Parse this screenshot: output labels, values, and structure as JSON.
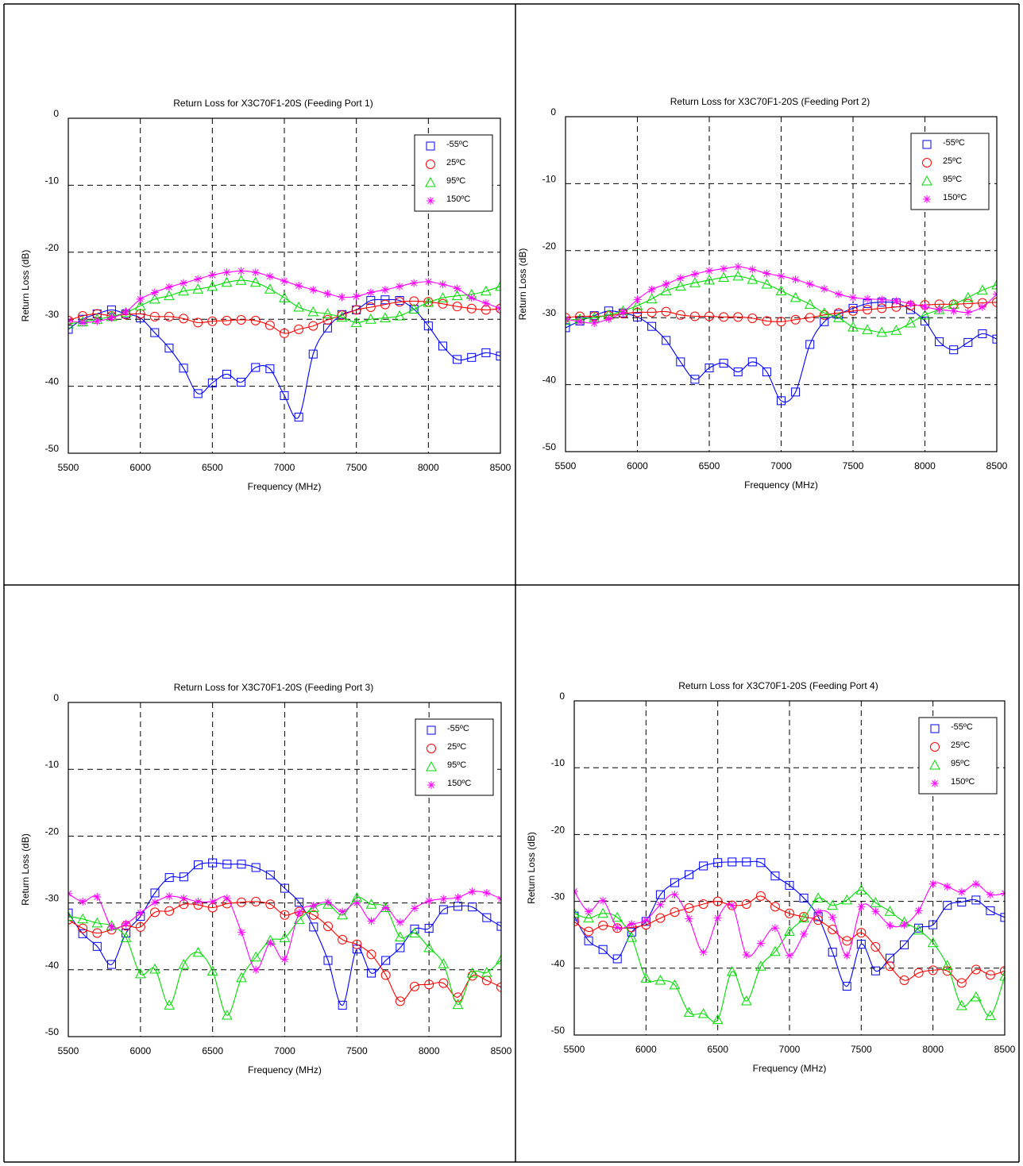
{
  "legend_labels": [
    "-55ºC",
    "25ºC",
    "95ºC",
    "150ºC"
  ],
  "series_colors": [
    "#0000ff",
    "#ff0000",
    "#00dd00",
    "#ff00ff"
  ],
  "marker_icons": [
    "square-marker-icon",
    "circle-marker-icon",
    "triangle-marker-icon",
    "asterisk-marker-icon"
  ],
  "chart_data": [
    {
      "type": "line",
      "title": "Return Loss for X3C70F1-20S (Feeding Port 1)",
      "xlabel": "Frequency (MHz)",
      "ylabel": "Return Loss (dB)",
      "xlim": [
        5500,
        8500
      ],
      "ylim": [
        -50,
        0
      ],
      "xticks": [
        "5500",
        "6000",
        "6500",
        "7000",
        "7500",
        "8000",
        "8500"
      ],
      "yticks": [
        "0",
        "-10",
        "-20",
        "-30",
        "-40",
        "-50"
      ],
      "grid": true,
      "legend": "top-right",
      "x": [
        5500,
        5600,
        5700,
        5800,
        5900,
        6000,
        6100,
        6200,
        6300,
        6400,
        6500,
        6600,
        6700,
        6800,
        6900,
        7000,
        7100,
        7200,
        7300,
        7400,
        7500,
        7600,
        7700,
        7800,
        7900,
        8000,
        8100,
        8200,
        8300,
        8400,
        8500
      ],
      "series": [
        {
          "name": "-55ºC",
          "values": [
            -31.5,
            -30,
            -29.2,
            -28.6,
            -29.2,
            -29.8,
            -32,
            -34.3,
            -37.3,
            -41.1,
            -39.5,
            -38.2,
            -39.4,
            -37.2,
            -37.4,
            -41.4,
            -44.6,
            -35.2,
            -31.3,
            -29.3,
            -28.6,
            -27.2,
            -27.1,
            -27.2,
            -28.5,
            -31,
            -34,
            -36,
            -35.7,
            -35,
            -35.5
          ]
        },
        {
          "name": "25ºC",
          "values": [
            -30.2,
            -29.5,
            -29.2,
            -29.5,
            -29.3,
            -29.2,
            -29.6,
            -29.6,
            -29.9,
            -30.5,
            -30.3,
            -30.2,
            -30.1,
            -30.2,
            -30.9,
            -32.1,
            -31.5,
            -31,
            -30.1,
            -29.4,
            -28.6,
            -28.2,
            -27.8,
            -27.4,
            -27.3,
            -27.4,
            -27.7,
            -28.1,
            -28.4,
            -28.6,
            -28.4
          ]
        },
        {
          "name": "95ºC",
          "values": [
            -30.7,
            -30.4,
            -30,
            -29.6,
            -29,
            -28,
            -27,
            -26.5,
            -25.8,
            -25.5,
            -25.1,
            -24.5,
            -24.2,
            -24.5,
            -25.5,
            -26.8,
            -28.2,
            -28.9,
            -29.2,
            -29.7,
            -30.5,
            -30,
            -29.8,
            -29.5,
            -28.5,
            -27.5,
            -26.8,
            -26.5,
            -26.3,
            -25.8,
            -25.1
          ]
        },
        {
          "name": "150ºC",
          "values": [
            -30.2,
            -30.5,
            -30.3,
            -29.8,
            -28.9,
            -27,
            -26,
            -25.2,
            -24.6,
            -24,
            -23.4,
            -23,
            -22.8,
            -23,
            -23.6,
            -24.3,
            -25,
            -25.6,
            -26.2,
            -26.7,
            -26.6,
            -26,
            -25.6,
            -25.1,
            -24.6,
            -24.4,
            -24.8,
            -25.4,
            -26.8,
            -27.6,
            -28.4
          ]
        }
      ]
    },
    {
      "type": "line",
      "title": "Return Loss for X3C70F1-20S (Feeding Port 2)",
      "xlabel": "Frequency (MHz)",
      "ylabel": "Return Loss (dB)",
      "xlim": [
        5500,
        8500
      ],
      "ylim": [
        -50,
        0
      ],
      "xticks": [
        "5500",
        "6000",
        "6500",
        "7000",
        "7500",
        "8000",
        "8500"
      ],
      "yticks": [
        "0",
        "-10",
        "-20",
        "-30",
        "-40",
        "-50"
      ],
      "grid": true,
      "legend": "top-right",
      "x": [
        5500,
        5600,
        5700,
        5800,
        5900,
        6000,
        6100,
        6200,
        6300,
        6400,
        6500,
        6600,
        6700,
        6800,
        6900,
        7000,
        7100,
        7200,
        7300,
        7400,
        7500,
        7600,
        7700,
        7800,
        7900,
        8000,
        8100,
        8200,
        8300,
        8400,
        8500
      ],
      "series": [
        {
          "name": "-55ºC",
          "values": [
            -31.5,
            -30.5,
            -29.7,
            -29,
            -29.3,
            -29.9,
            -31.3,
            -33.4,
            -36.6,
            -39.2,
            -37.5,
            -36.8,
            -38.1,
            -36.6,
            -38.1,
            -42.4,
            -41.1,
            -34,
            -30.6,
            -29.5,
            -28.6,
            -27.9,
            -27.7,
            -27.8,
            -28.8,
            -30.5,
            -33.6,
            -34.8,
            -33.7,
            -32.4,
            -33.2
          ]
        },
        {
          "name": "25ºC",
          "values": [
            -30,
            -29.8,
            -29.8,
            -29.7,
            -29.4,
            -29.2,
            -29.2,
            -29.1,
            -29.6,
            -29.8,
            -29.8,
            -29.9,
            -29.9,
            -30.1,
            -30.5,
            -30.6,
            -30.3,
            -30,
            -29.6,
            -29.3,
            -29,
            -28.8,
            -28.6,
            -28.4,
            -28.2,
            -28.1,
            -28,
            -28,
            -27.9,
            -27.8,
            -27.7
          ]
        },
        {
          "name": "95ºC",
          "values": [
            -30.4,
            -30.2,
            -30,
            -29.6,
            -29,
            -28.2,
            -27.2,
            -26,
            -25.3,
            -24.8,
            -24.4,
            -24,
            -23.8,
            -24.3,
            -25,
            -26,
            -27,
            -28,
            -29.3,
            -30,
            -31.4,
            -31.8,
            -32.2,
            -31.9,
            -30.8,
            -29.6,
            -28.8,
            -28,
            -27,
            -25.9,
            -25.1
          ]
        },
        {
          "name": "150ºC",
          "values": [
            -30.2,
            -30.6,
            -30.8,
            -30.2,
            -29.2,
            -27.3,
            -25.8,
            -25,
            -24.1,
            -23.5,
            -23,
            -22.7,
            -22.4,
            -22.8,
            -23.4,
            -23.8,
            -24.3,
            -25,
            -25.7,
            -26.5,
            -27,
            -27.2,
            -27.3,
            -27.5,
            -27.9,
            -28.4,
            -28.8,
            -29,
            -29.2,
            -28.4,
            -26.5
          ]
        }
      ]
    },
    {
      "type": "line",
      "title": "Return Loss for X3C70F1-20S (Feeding Port 3)",
      "xlabel": "Frequency (MHz)",
      "ylabel": "Return Loss (dB)",
      "xlim": [
        5500,
        8500
      ],
      "ylim": [
        -50,
        0
      ],
      "xticks": [
        "5500",
        "6000",
        "6500",
        "7000",
        "7500",
        "8000",
        "8500"
      ],
      "yticks": [
        "0",
        "-10",
        "-20",
        "-30",
        "-40",
        "-50"
      ],
      "grid": true,
      "legend": "top-right",
      "x": [
        5500,
        5600,
        5700,
        5800,
        5900,
        6000,
        6100,
        6200,
        6300,
        6400,
        6500,
        6600,
        6700,
        6800,
        6900,
        7000,
        7100,
        7200,
        7300,
        7400,
        7500,
        7600,
        7700,
        7800,
        7900,
        8000,
        8100,
        8200,
        8300,
        8400,
        8500
      ],
      "series": [
        {
          "name": "-55ºC",
          "values": [
            -31.5,
            -34.6,
            -36.5,
            -39.2,
            -34.5,
            -32,
            -28.5,
            -26.2,
            -26.1,
            -24.3,
            -24,
            -24.2,
            -24.2,
            -24.7,
            -25.8,
            -27.8,
            -29.9,
            -33.6,
            -38.6,
            -45.3,
            -36.9,
            -40.5,
            -38.6,
            -36.7,
            -33.9,
            -33.8,
            -31,
            -30.5,
            -30.6,
            -32.2,
            -33.5
          ]
        },
        {
          "name": "25ºC",
          "values": [
            -32.5,
            -33.8,
            -34.5,
            -34,
            -33.4,
            -33.6,
            -31.4,
            -31.2,
            -30.2,
            -30.3,
            -30.7,
            -30.1,
            -29.9,
            -29.8,
            -30.2,
            -31.8,
            -31.3,
            -31.8,
            -33.5,
            -35.5,
            -36.2,
            -37.7,
            -40.8,
            -44.7,
            -42.5,
            -42.2,
            -42,
            -44.1,
            -40.9,
            -41.6,
            -42.6
          ]
        },
        {
          "name": "95ºC",
          "values": [
            -32,
            -32.4,
            -33,
            -33.4,
            -35.2,
            -40.6,
            -39.9,
            -45.3,
            -39.2,
            -37.4,
            -40.2,
            -46.8,
            -41.2,
            -38.1,
            -35.6,
            -35.2,
            -32.5,
            -30.7,
            -30.2,
            -31.8,
            -29.2,
            -30.2,
            -30.7,
            -35.1,
            -34.5,
            -36.7,
            -39.1,
            -45.2,
            -40.5,
            -40.4,
            -38.5
          ]
        },
        {
          "name": "150ºC",
          "values": [
            -28.6,
            -29.8,
            -29.1,
            -33.6,
            -33.1,
            -31.5,
            -29.9,
            -29,
            -29.3,
            -29.8,
            -29.8,
            -29.3,
            -34.4,
            -40,
            -36,
            -38.4,
            -31.5,
            -30.4,
            -29.9,
            -31.3,
            -30,
            -32.7,
            -30.7,
            -32.9,
            -30.8,
            -29.7,
            -29.4,
            -29.2,
            -28.3,
            -28.5,
            -29.4
          ]
        }
      ]
    },
    {
      "type": "line",
      "title": "Return Loss for X3C70F1-20S (Feeding Port 4)",
      "xlabel": "Frequency (MHz)",
      "ylabel": "Return Loss (dB)",
      "xlim": [
        5500,
        8500
      ],
      "ylim": [
        -50,
        0
      ],
      "xticks": [
        "5500",
        "6000",
        "6500",
        "7000",
        "7500",
        "8000",
        "8500"
      ],
      "yticks": [
        "0",
        "-10",
        "-20",
        "-30",
        "-40",
        "-50"
      ],
      "grid": true,
      "legend": "top-right",
      "x": [
        5500,
        5600,
        5700,
        5800,
        5900,
        6000,
        6100,
        6200,
        6300,
        6400,
        6500,
        6600,
        6700,
        6800,
        6900,
        7000,
        7100,
        7200,
        7300,
        7400,
        7500,
        7600,
        7700,
        7800,
        7900,
        8000,
        8100,
        8200,
        8300,
        8400,
        8500
      ],
      "series": [
        {
          "name": "-55ºC",
          "values": [
            -32.2,
            -35.9,
            -37.2,
            -38.6,
            -34.6,
            -33,
            -29,
            -27.2,
            -26,
            -24.7,
            -24.2,
            -24.1,
            -24.1,
            -24.2,
            -26.2,
            -27.6,
            -29.5,
            -32.3,
            -37.6,
            -42.7,
            -36.4,
            -40.4,
            -38.5,
            -36.5,
            -34,
            -33.5,
            -30.6,
            -30.1,
            -29.8,
            -31.4,
            -32.4
          ]
        },
        {
          "name": "25ºC",
          "values": [
            -33,
            -34.5,
            -33.6,
            -34,
            -33.9,
            -33.5,
            -32.5,
            -31.6,
            -31,
            -30.4,
            -30,
            -30.6,
            -30.4,
            -29.2,
            -30.8,
            -31.8,
            -32.3,
            -32.8,
            -34.2,
            -35.9,
            -34.7,
            -36.8,
            -39.7,
            -41.8,
            -40.7,
            -40.3,
            -40.4,
            -42.2,
            -40.2,
            -41,
            -40.4
          ]
        },
        {
          "name": "95ºC",
          "values": [
            -31.8,
            -32.5,
            -31.8,
            -32.4,
            -35.4,
            -41.5,
            -41.8,
            -42.5,
            -46.6,
            -46.8,
            -47.7,
            -40.5,
            -44.9,
            -39.7,
            -37.5,
            -34.5,
            -32.5,
            -29.5,
            -30.6,
            -29.8,
            -28.3,
            -30.2,
            -31.5,
            -33.1,
            -34.3,
            -36.2,
            -39.6,
            -45.6,
            -44.3,
            -47.1,
            -41.2
          ]
        },
        {
          "name": "150ºC",
          "values": [
            -28.5,
            -31.5,
            -29.9,
            -33.9,
            -33.4,
            -32.8,
            -30.5,
            -29,
            -32.6,
            -37.6,
            -32.5,
            -30.6,
            -38,
            -36.3,
            -34,
            -38.1,
            -34.9,
            -31.6,
            -32.4,
            -38.1,
            -30.8,
            -31.5,
            -33.6,
            -33.5,
            -31.4,
            -27.4,
            -27.8,
            -28.6,
            -27.4,
            -29,
            -28.8
          ]
        }
      ]
    }
  ]
}
